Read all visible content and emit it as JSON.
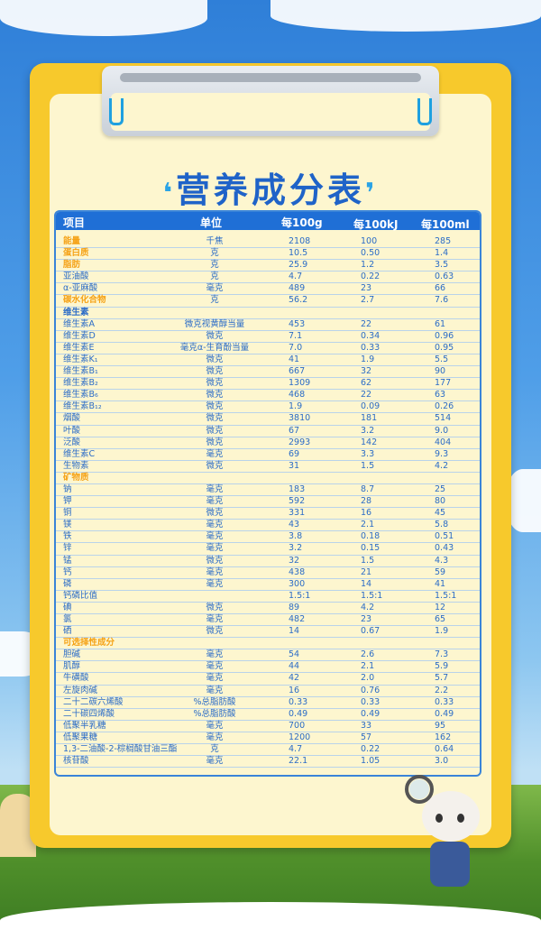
{
  "title": "营养成分表",
  "header": [
    "项目",
    "单位",
    "每100g",
    "每100kJ",
    "每100ml"
  ],
  "rows": [
    [
      "能量",
      "千焦",
      "2108",
      "100",
      "285",
      "orange"
    ],
    [
      "蛋白质",
      "克",
      "10.5",
      "0.50",
      "1.4",
      "orange"
    ],
    [
      "脂肪",
      "克",
      "25.9",
      "1.2",
      "3.5",
      "orange"
    ],
    [
      "亚油酸",
      "克",
      "4.7",
      "0.22",
      "0.63",
      ""
    ],
    [
      "α-亚麻酸",
      "毫克",
      "489",
      "23",
      "66",
      ""
    ],
    [
      "碳水化合物",
      "克",
      "56.2",
      "2.7",
      "7.6",
      "orange"
    ],
    [
      "维生素",
      "",
      "",
      "",
      "",
      "section"
    ],
    [
      "维生素A",
      "微克视黄醇当量",
      "453",
      "22",
      "61",
      ""
    ],
    [
      "维生素D",
      "微克",
      "7.1",
      "0.34",
      "0.96",
      ""
    ],
    [
      "维生素E",
      "毫克α-生育酚当量",
      "7.0",
      "0.33",
      "0.95",
      ""
    ],
    [
      "维生素K₁",
      "微克",
      "41",
      "1.9",
      "5.5",
      ""
    ],
    [
      "维生素B₁",
      "微克",
      "667",
      "32",
      "90",
      ""
    ],
    [
      "维生素B₂",
      "微克",
      "1309",
      "62",
      "177",
      ""
    ],
    [
      "维生素B₆",
      "微克",
      "468",
      "22",
      "63",
      ""
    ],
    [
      "维生素B₁₂",
      "微克",
      "1.9",
      "0.09",
      "0.26",
      ""
    ],
    [
      "烟酸",
      "微克",
      "3810",
      "181",
      "514",
      ""
    ],
    [
      "叶酸",
      "微克",
      "67",
      "3.2",
      "9.0",
      ""
    ],
    [
      "泛酸",
      "微克",
      "2993",
      "142",
      "404",
      ""
    ],
    [
      "维生素C",
      "毫克",
      "69",
      "3.3",
      "9.3",
      ""
    ],
    [
      "生物素",
      "微克",
      "31",
      "1.5",
      "4.2",
      ""
    ],
    [
      "矿物质",
      "",
      "",
      "",
      "",
      "orange"
    ],
    [
      "钠",
      "毫克",
      "183",
      "8.7",
      "25",
      ""
    ],
    [
      "钾",
      "毫克",
      "592",
      "28",
      "80",
      ""
    ],
    [
      "铜",
      "微克",
      "331",
      "16",
      "45",
      ""
    ],
    [
      "镁",
      "毫克",
      "43",
      "2.1",
      "5.8",
      ""
    ],
    [
      "铁",
      "毫克",
      "3.8",
      "0.18",
      "0.51",
      ""
    ],
    [
      "锌",
      "毫克",
      "3.2",
      "0.15",
      "0.43",
      ""
    ],
    [
      "锰",
      "微克",
      "32",
      "1.5",
      "4.3",
      ""
    ],
    [
      "钙",
      "毫克",
      "438",
      "21",
      "59",
      ""
    ],
    [
      "磷",
      "毫克",
      "300",
      "14",
      "41",
      ""
    ],
    [
      "钙磷比值",
      "",
      "1.5:1",
      "1.5:1",
      "1.5:1",
      ""
    ],
    [
      "碘",
      "微克",
      "89",
      "4.2",
      "12",
      ""
    ],
    [
      "氯",
      "毫克",
      "482",
      "23",
      "65",
      ""
    ],
    [
      "硒",
      "微克",
      "14",
      "0.67",
      "1.9",
      ""
    ],
    [
      "可选择性成分",
      "",
      "",
      "",
      "",
      "orange"
    ],
    [
      "胆碱",
      "毫克",
      "54",
      "2.6",
      "7.3",
      ""
    ],
    [
      "肌醇",
      "毫克",
      "44",
      "2.1",
      "5.9",
      ""
    ],
    [
      "牛磺酸",
      "毫克",
      "42",
      "2.0",
      "5.7",
      ""
    ],
    [
      "左旋肉碱",
      "毫克",
      "16",
      "0.76",
      "2.2",
      ""
    ],
    [
      "二十二碳六烯酸",
      "%总脂肪酸",
      "0.33",
      "0.33",
      "0.33",
      ""
    ],
    [
      "二十碳四烯酸",
      "%总脂肪酸",
      "0.49",
      "0.49",
      "0.49",
      ""
    ],
    [
      "低聚半乳糖",
      "毫克",
      "700",
      "33",
      "95",
      ""
    ],
    [
      "低聚果糖",
      "毫克",
      "1200",
      "57",
      "162",
      ""
    ],
    [
      "1,3-二油酸-2-棕榈酸甘油三酯",
      "克",
      "4.7",
      "0.22",
      "0.64",
      ""
    ],
    [
      "核苷酸",
      "毫克",
      "22.1",
      "1.05",
      "3.0",
      ""
    ]
  ],
  "colors": {
    "header": "#1f6fd6",
    "text": "#2b6cc7",
    "highlight": "#f5a216",
    "board": "#f7c92c",
    "paper": "#fdf6cf"
  }
}
